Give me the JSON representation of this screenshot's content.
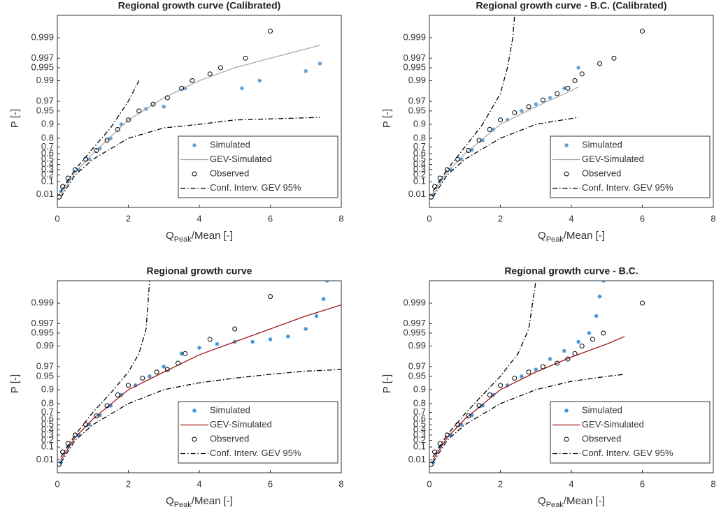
{
  "chart_data": [
    {
      "type": "scatter",
      "title": "Regional growth curve (Calibrated)",
      "xlabel": "Q",
      "xlabel_subscript": "Peak",
      "xlabel_suffix": "/Mean [-]",
      "ylabel": "P [-]",
      "xlim": [
        0,
        8
      ],
      "ylim": [
        0.0001,
        0.9997
      ],
      "y_scale": "gumbel",
      "xticks": [
        0,
        2,
        4,
        6,
        8
      ],
      "yticks": [
        0.01,
        0.1,
        0.2,
        0.3,
        0.4,
        0.5,
        0.6,
        0.7,
        0.8,
        0.9,
        0.95,
        0.97,
        0.99,
        0.995,
        0.997,
        0.999
      ],
      "legend": "lower right",
      "series": [
        {
          "name": "Simulated",
          "style": "marker",
          "marker": "asterisk",
          "color": "#5a9bd4",
          "x": [
            0.1,
            0.3,
            0.6,
            0.9,
            1.2,
            1.5,
            1.8,
            2.5,
            3.0,
            3.6,
            5.2,
            5.7,
            7.0,
            7.4
          ],
          "values": [
            0.02,
            0.1,
            0.3,
            0.5,
            0.68,
            0.8,
            0.9,
            0.955,
            0.96,
            0.985,
            0.985,
            0.99,
            0.994,
            0.996
          ]
        },
        {
          "name": "GEV-Simulated",
          "style": "line",
          "color": "#aaaaaa",
          "x": [
            0.1,
            0.5,
            1,
            2,
            3,
            4,
            5,
            6,
            7.4
          ],
          "values": [
            0.01,
            0.25,
            0.6,
            0.92,
            0.975,
            0.99,
            0.995,
            0.997,
            0.9985
          ]
        },
        {
          "name": "Observed",
          "style": "marker",
          "marker": "circle",
          "color": "#000000",
          "x": [
            0.05,
            0.15,
            0.3,
            0.5,
            0.8,
            1.1,
            1.4,
            1.7,
            2.0,
            2.3,
            2.7,
            3.1,
            3.5,
            3.8,
            4.3,
            4.6,
            5.3,
            6.0
          ],
          "values": [
            0.005,
            0.05,
            0.15,
            0.3,
            0.5,
            0.65,
            0.78,
            0.87,
            0.92,
            0.95,
            0.965,
            0.975,
            0.985,
            0.99,
            0.993,
            0.995,
            0.997,
            0.9993
          ]
        },
        {
          "name": "Conf. Interv. GEV 95%",
          "style": "dashdot",
          "color": "#000000",
          "lines": [
            {
              "x": [
                0.1,
                0.5,
                1,
                1.5,
                2,
                2.3
              ],
              "values": [
                0.02,
                0.3,
                0.68,
                0.88,
                0.97,
                0.99
              ]
            },
            {
              "x": [
                0.1,
                0.5,
                1,
                2,
                3,
                4,
                5,
                7.4
              ],
              "values": [
                0.005,
                0.2,
                0.5,
                0.8,
                0.88,
                0.9,
                0.92,
                0.93
              ]
            }
          ]
        }
      ]
    },
    {
      "type": "scatter",
      "title": "Regional growth curve - B.C. (Calibrated)",
      "xlabel": "Q",
      "xlabel_subscript": "Peak",
      "xlabel_suffix": "/Mean [-]",
      "ylabel": "P [-]",
      "xlim": [
        0,
        8
      ],
      "ylim": [
        0.0001,
        0.9997
      ],
      "y_scale": "gumbel",
      "xticks": [
        0,
        2,
        4,
        6,
        8
      ],
      "yticks": [
        0.01,
        0.1,
        0.2,
        0.3,
        0.4,
        0.5,
        0.6,
        0.7,
        0.8,
        0.9,
        0.95,
        0.97,
        0.99,
        0.995,
        0.997,
        0.999
      ],
      "legend": "lower right",
      "series": [
        {
          "name": "Simulated",
          "style": "marker",
          "marker": "asterisk",
          "color": "#5a9bd4",
          "x": [
            0.1,
            0.3,
            0.6,
            0.9,
            1.2,
            1.5,
            1.8,
            2.2,
            2.6,
            3.0,
            3.4,
            3.8,
            4.2
          ],
          "values": [
            0.01,
            0.1,
            0.3,
            0.5,
            0.66,
            0.78,
            0.87,
            0.92,
            0.95,
            0.965,
            0.975,
            0.985,
            0.995
          ]
        },
        {
          "name": "GEV-Simulated",
          "style": "line",
          "color": "#aaaaaa",
          "x": [
            0.1,
            0.5,
            1,
            2,
            3,
            4,
            4.2
          ],
          "values": [
            0.01,
            0.25,
            0.6,
            0.9,
            0.96,
            0.983,
            0.986
          ]
        },
        {
          "name": "Observed",
          "style": "marker",
          "marker": "circle",
          "color": "#000000",
          "x": [
            0.05,
            0.15,
            0.3,
            0.5,
            0.8,
            1.1,
            1.4,
            1.7,
            2.0,
            2.4,
            2.8,
            3.2,
            3.6,
            3.9,
            4.1,
            4.3,
            4.8,
            5.2,
            6.0
          ],
          "values": [
            0.005,
            0.05,
            0.15,
            0.3,
            0.5,
            0.65,
            0.78,
            0.87,
            0.92,
            0.945,
            0.96,
            0.972,
            0.98,
            0.985,
            0.99,
            0.993,
            0.996,
            0.997,
            0.9993
          ]
        },
        {
          "name": "Conf. Interv. GEV 95%",
          "style": "dashdot",
          "color": "#000000",
          "lines": [
            {
              "x": [
                0.1,
                0.5,
                1,
                1.5,
                2,
                2.2,
                2.35,
                2.4
              ],
              "values": [
                0.02,
                0.3,
                0.7,
                0.9,
                0.98,
                0.995,
                0.999,
                0.9997
              ]
            },
            {
              "x": [
                0.1,
                0.5,
                1,
                2,
                3,
                4.2
              ],
              "values": [
                0.005,
                0.2,
                0.5,
                0.8,
                0.9,
                0.93
              ]
            }
          ]
        }
      ]
    },
    {
      "type": "scatter",
      "title": "Regional growth curve",
      "xlabel": "Q",
      "xlabel_subscript": "Peak",
      "xlabel_suffix": "/Mean [-]",
      "ylabel": "P [-]",
      "xlim": [
        0,
        8
      ],
      "ylim": [
        0.0001,
        0.9997
      ],
      "y_scale": "gumbel",
      "xticks": [
        0,
        2,
        4,
        6,
        8
      ],
      "yticks": [
        0.01,
        0.1,
        0.2,
        0.3,
        0.4,
        0.5,
        0.6,
        0.7,
        0.8,
        0.9,
        0.95,
        0.97,
        0.99,
        0.995,
        0.997,
        0.999
      ],
      "legend": "lower right",
      "series": [
        {
          "name": "Simulated",
          "style": "marker",
          "marker": "asterisk",
          "color": "#3a8fd4",
          "x": [
            0.1,
            0.3,
            0.6,
            0.9,
            1.2,
            1.5,
            1.8,
            2.2,
            2.6,
            3.0,
            3.5,
            4.0,
            4.5,
            5.0,
            5.5,
            6.0,
            6.5,
            7.0,
            7.3,
            7.5,
            7.6
          ],
          "values": [
            0.005,
            0.1,
            0.3,
            0.5,
            0.66,
            0.78,
            0.87,
            0.92,
            0.95,
            0.97,
            0.985,
            0.989,
            0.991,
            0.992,
            0.992,
            0.993,
            0.994,
            0.996,
            0.998,
            0.9992,
            0.9997
          ]
        },
        {
          "name": "GEV-Simulated",
          "style": "line",
          "color": "#a01818",
          "x": [
            0.1,
            0.5,
            1,
            2,
            3,
            4,
            5,
            6,
            7,
            8
          ],
          "values": [
            0.01,
            0.25,
            0.6,
            0.9,
            0.96,
            0.984,
            0.992,
            0.996,
            0.998,
            0.9989
          ]
        },
        {
          "name": "Observed",
          "style": "marker",
          "marker": "circle",
          "color": "#000000",
          "x": [
            0.05,
            0.15,
            0.3,
            0.5,
            0.8,
            1.1,
            1.4,
            1.7,
            2.0,
            2.4,
            2.8,
            3.1,
            3.4,
            3.6,
            4.3,
            5.0,
            6.0
          ],
          "values": [
            0.003,
            0.05,
            0.15,
            0.3,
            0.5,
            0.65,
            0.78,
            0.87,
            0.92,
            0.945,
            0.96,
            0.965,
            0.975,
            0.985,
            0.993,
            0.996,
            0.9993
          ]
        },
        {
          "name": "Conf. Interv. GEV 95%",
          "style": "dashdot",
          "color": "#000000",
          "lines": [
            {
              "x": [
                0.1,
                0.5,
                1,
                1.5,
                2,
                2.3,
                2.5,
                2.6
              ],
              "values": [
                0.02,
                0.3,
                0.7,
                0.88,
                0.96,
                0.985,
                0.996,
                0.9997
              ]
            },
            {
              "x": [
                0.1,
                0.5,
                1,
                2,
                3,
                4,
                5,
                6,
                7,
                8
              ],
              "values": [
                0.005,
                0.2,
                0.5,
                0.8,
                0.9,
                0.93,
                0.945,
                0.955,
                0.962,
                0.965
              ]
            }
          ]
        }
      ]
    },
    {
      "type": "scatter",
      "title": "Regional growth curve - B.C.",
      "xlabel": "Q",
      "xlabel_subscript": "Peak",
      "xlabel_suffix": "/Mean [-]",
      "ylabel": "P [-]",
      "xlim": [
        0,
        8
      ],
      "ylim": [
        0.0001,
        0.9997
      ],
      "y_scale": "gumbel",
      "xticks": [
        0,
        2,
        4,
        6,
        8
      ],
      "yticks": [
        0.01,
        0.1,
        0.2,
        0.3,
        0.4,
        0.5,
        0.6,
        0.7,
        0.8,
        0.9,
        0.95,
        0.97,
        0.99,
        0.995,
        0.997,
        0.999
      ],
      "legend": "lower right",
      "series": [
        {
          "name": "Simulated",
          "style": "marker",
          "marker": "asterisk",
          "color": "#3a8fd4",
          "x": [
            0.1,
            0.3,
            0.6,
            0.9,
            1.2,
            1.5,
            1.8,
            2.2,
            2.6,
            3.0,
            3.4,
            3.8,
            4.2,
            4.5,
            4.7,
            4.8,
            4.9
          ],
          "values": [
            0.005,
            0.1,
            0.3,
            0.5,
            0.66,
            0.78,
            0.87,
            0.92,
            0.95,
            0.965,
            0.98,
            0.987,
            0.992,
            0.995,
            0.998,
            0.9993,
            0.9997
          ]
        },
        {
          "name": "GEV-Simulated",
          "style": "line",
          "color": "#a01818",
          "x": [
            0.1,
            0.5,
            1,
            2,
            3,
            4,
            5,
            5.5
          ],
          "values": [
            0.01,
            0.25,
            0.6,
            0.9,
            0.96,
            0.982,
            0.991,
            0.994
          ]
        },
        {
          "name": "Observed",
          "style": "marker",
          "marker": "circle",
          "color": "#000000",
          "x": [
            0.05,
            0.15,
            0.3,
            0.5,
            0.8,
            1.1,
            1.4,
            1.7,
            2.0,
            2.4,
            2.8,
            3.2,
            3.6,
            3.9,
            4.1,
            4.3,
            4.6,
            4.9,
            6.0
          ],
          "values": [
            0.003,
            0.05,
            0.15,
            0.3,
            0.5,
            0.65,
            0.78,
            0.87,
            0.92,
            0.945,
            0.96,
            0.97,
            0.975,
            0.98,
            0.985,
            0.99,
            0.993,
            0.995,
            0.999
          ]
        },
        {
          "name": "Conf. Interv. GEV 95%",
          "style": "dashdot",
          "color": "#000000",
          "lines": [
            {
              "x": [
                0.1,
                0.5,
                1,
                1.5,
                2,
                2.5,
                2.8,
                3.0
              ],
              "values": [
                0.02,
                0.3,
                0.68,
                0.87,
                0.95,
                0.985,
                0.996,
                0.9997
              ]
            },
            {
              "x": [
                0.1,
                0.5,
                1,
                2,
                3,
                4,
                5,
                5.5
              ],
              "values": [
                0.005,
                0.2,
                0.5,
                0.8,
                0.9,
                0.935,
                0.95,
                0.955
              ]
            }
          ]
        }
      ]
    }
  ]
}
